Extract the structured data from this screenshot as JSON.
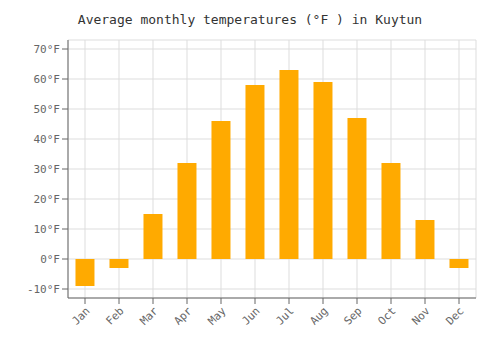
{
  "chart_data": {
    "type": "bar",
    "title": "Average monthly temperatures (°F ) in Kuytun",
    "categories": [
      "Jan",
      "Feb",
      "Mar",
      "Apr",
      "May",
      "Jun",
      "Jul",
      "Aug",
      "Sep",
      "Oct",
      "Nov",
      "Dec"
    ],
    "values": [
      -9,
      -3,
      15,
      32,
      46,
      58,
      63,
      59,
      47,
      32,
      13,
      -3
    ],
    "color": "#FFAA00",
    "ylim": [
      -13,
      73
    ],
    "yticks": [
      {
        "value": -10,
        "label": "-10°F"
      },
      {
        "value": 0,
        "label": "0°F"
      },
      {
        "value": 10,
        "label": "10°F"
      },
      {
        "value": 20,
        "label": "20°F"
      },
      {
        "value": 30,
        "label": "30°F"
      },
      {
        "value": 40,
        "label": "40°F"
      },
      {
        "value": 50,
        "label": "50°F"
      },
      {
        "value": 60,
        "label": "60°F"
      },
      {
        "value": 70,
        "label": "70°F"
      }
    ],
    "grid": true
  }
}
